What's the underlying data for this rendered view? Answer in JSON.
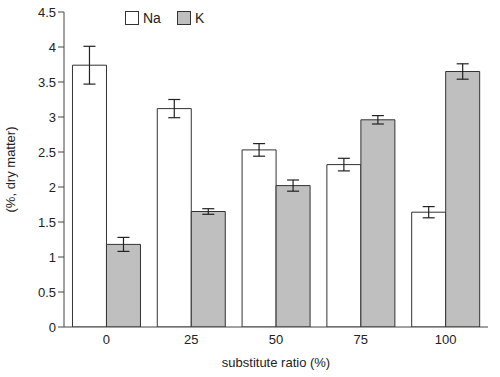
{
  "chart_data": {
    "type": "bar",
    "x_label": "substitute ratio (%)",
    "y_label": "(%, dry matter)",
    "categories": [
      "0",
      "25",
      "50",
      "75",
      "100"
    ],
    "series": [
      {
        "name": "Na",
        "color": "#ffffff",
        "values": [
          3.74,
          3.12,
          2.53,
          2.32,
          1.64
        ],
        "errors": [
          0.27,
          0.13,
          0.09,
          0.09,
          0.08
        ]
      },
      {
        "name": "K",
        "color": "#bfbfbf",
        "values": [
          1.18,
          1.65,
          2.02,
          2.96,
          3.65
        ],
        "errors": [
          0.1,
          0.04,
          0.08,
          0.06,
          0.11
        ]
      }
    ],
    "ylim": [
      0,
      4.5
    ],
    "yticks": [
      0,
      0.5,
      1,
      1.5,
      2,
      2.5,
      3,
      3.5,
      4,
      4.5
    ],
    "grid": false,
    "legend": "upper left"
  }
}
